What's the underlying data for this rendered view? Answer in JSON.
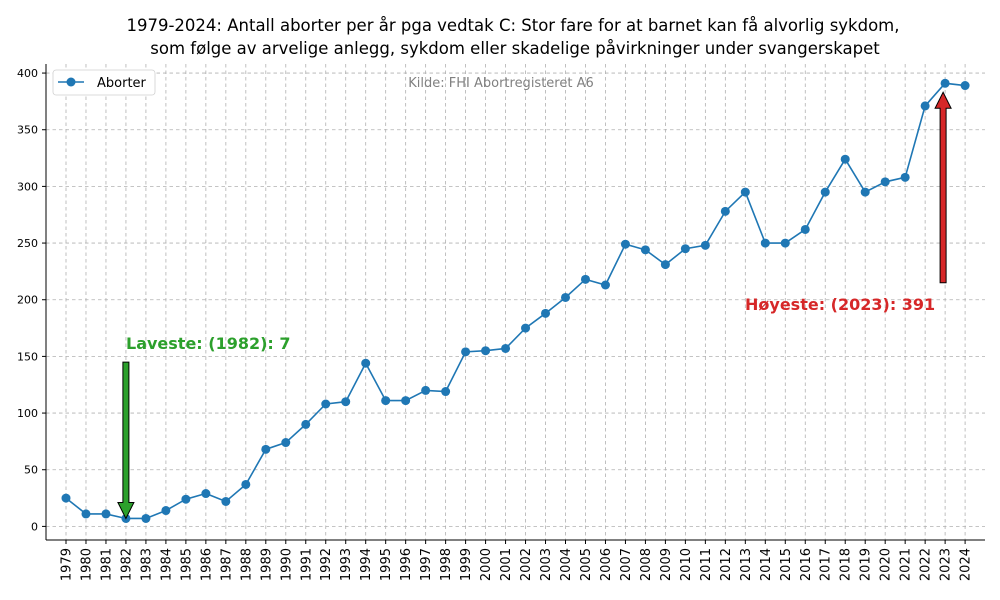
{
  "chart_data": {
    "type": "line",
    "title_line1": "1979-2024: Antall aborter per år pga vedtak C: Stor fare for at barnet kan få alvorlig sykdom,",
    "title_line2": "som følge av arvelige anlegg, sykdom eller skadelige påvirkninger under svangerskapet",
    "source": "Kilde: FHI Abortregisteret A6",
    "xlabel": "",
    "ylabel": "",
    "ylim": [
      -12,
      408
    ],
    "yticks": [
      0,
      50,
      100,
      150,
      200,
      250,
      300,
      350,
      400
    ],
    "grid": true,
    "legend_position": "top-left",
    "colors": {
      "line": "#1f77b4",
      "low": "#2ca02c",
      "high": "#d62728"
    },
    "categories": [
      "1979",
      "1980",
      "1981",
      "1982",
      "1983",
      "1984",
      "1985",
      "1986",
      "1987",
      "1988",
      "1989",
      "1990",
      "1991",
      "1992",
      "1993",
      "1994",
      "1995",
      "1996",
      "1997",
      "1998",
      "1999",
      "2000",
      "2001",
      "2002",
      "2003",
      "2004",
      "2005",
      "2006",
      "2007",
      "2008",
      "2009",
      "2010",
      "2011",
      "2012",
      "2013",
      "2014",
      "2015",
      "2016",
      "2017",
      "2018",
      "2019",
      "2020",
      "2021",
      "2022",
      "2023",
      "2024"
    ],
    "series": [
      {
        "name": "Aborter",
        "values": [
          25,
          11,
          11,
          7,
          7,
          14,
          24,
          29,
          22,
          37,
          68,
          74,
          90,
          108,
          110,
          144,
          111,
          111,
          120,
          119,
          154,
          155,
          157,
          175,
          188,
          202,
          218,
          213,
          249,
          244,
          231,
          245,
          248,
          278,
          295,
          250,
          250,
          262,
          295,
          324,
          295,
          304,
          308,
          371,
          391,
          389
        ]
      }
    ],
    "annotations": {
      "low": {
        "text": "Laveste: (1982): 7",
        "year": "1982",
        "value": 7
      },
      "high": {
        "text": "Høyeste: (2023): 391",
        "year": "2023",
        "value": 391
      }
    }
  }
}
